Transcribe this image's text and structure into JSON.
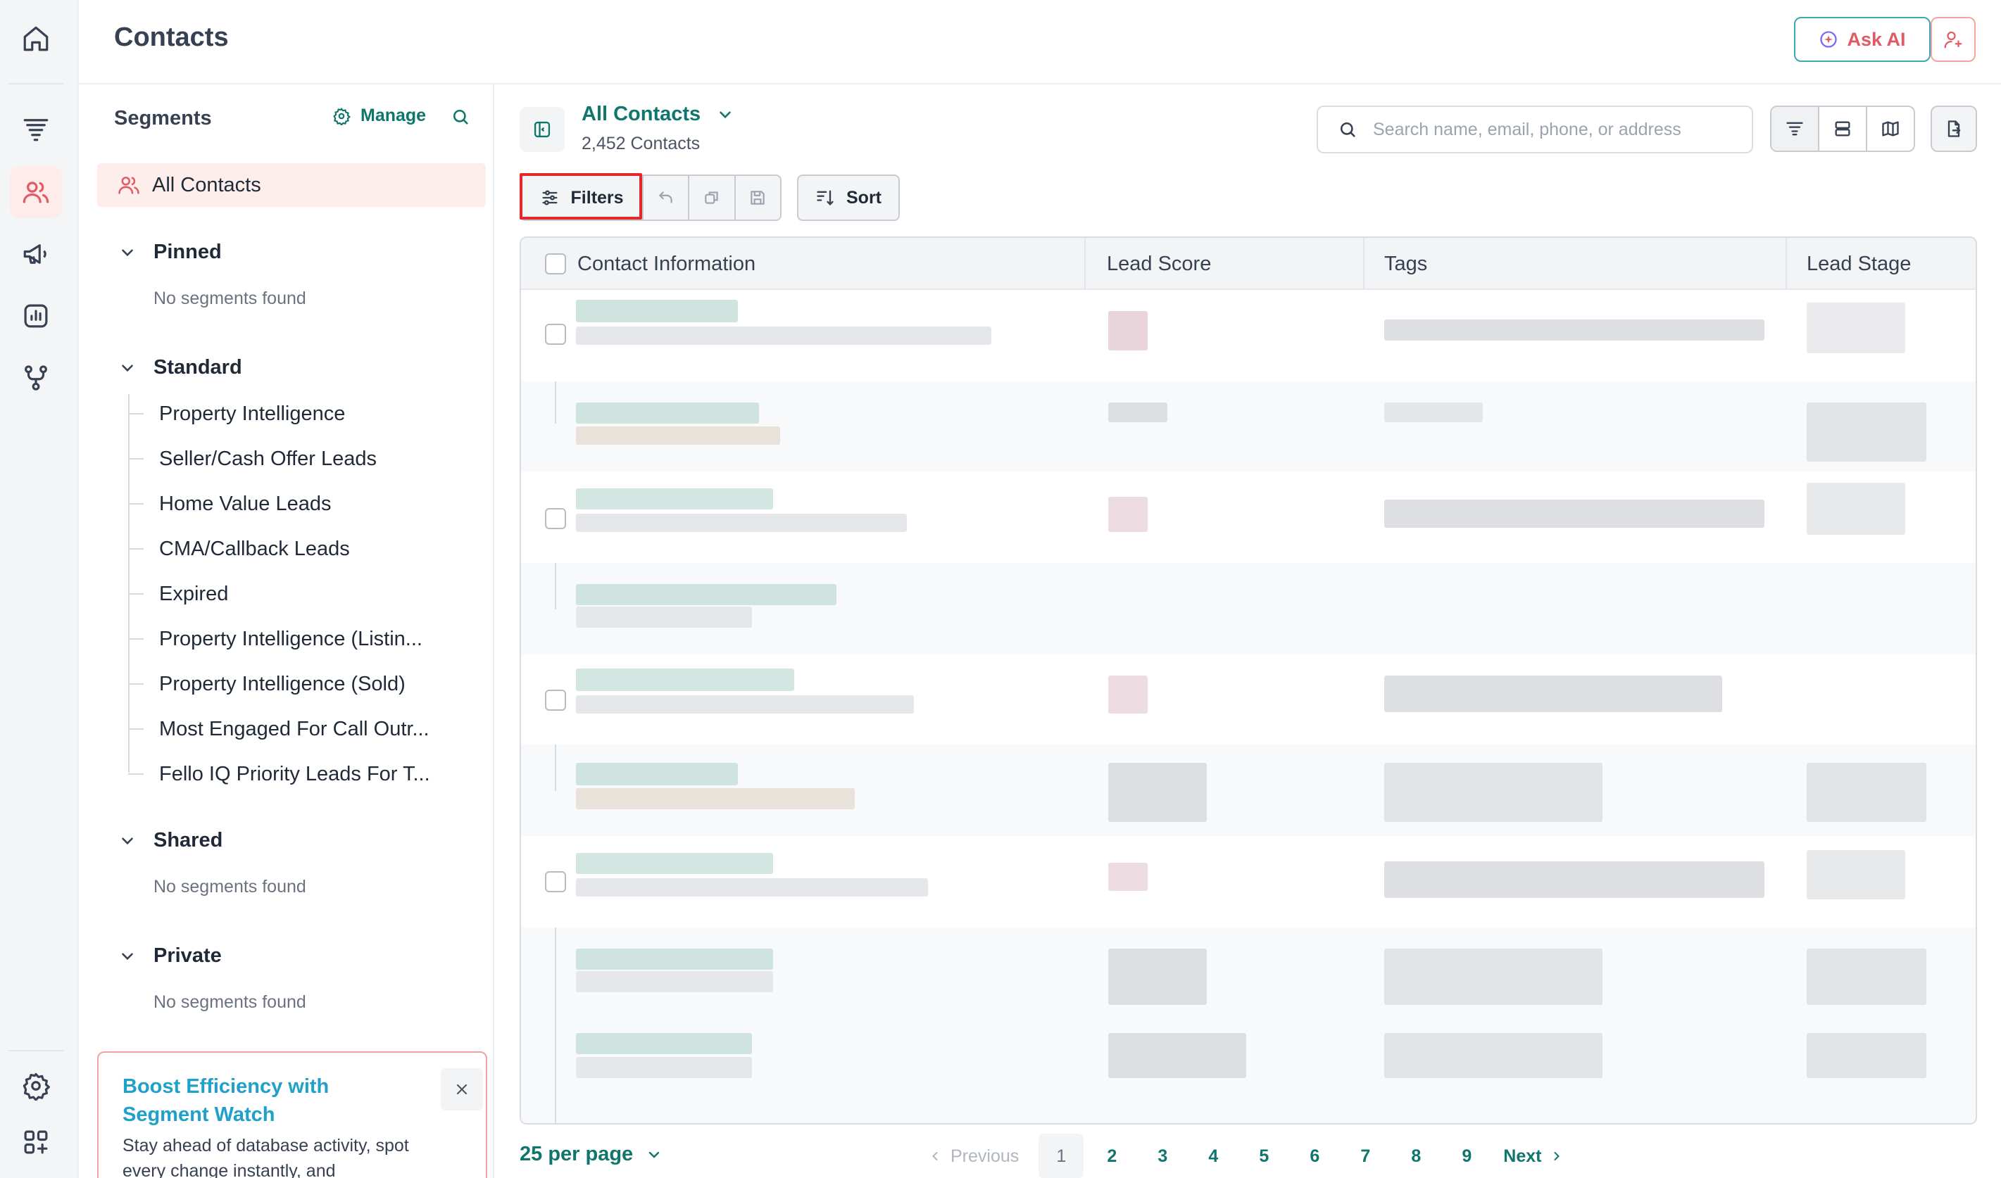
{
  "header": {
    "title": "Contacts",
    "ask_ai_label": "Ask AI"
  },
  "rail": {
    "items": [
      "home-icon",
      "funnel-icon",
      "contacts-icon",
      "megaphone-icon",
      "analytics-icon",
      "workflow-icon",
      "settings-icon",
      "apps-icon"
    ],
    "active": "contacts-icon"
  },
  "segments": {
    "title": "Segments",
    "manage_label": "Manage",
    "all_contacts_label": "All Contacts",
    "groups": {
      "pinned": {
        "label": "Pinned",
        "empty": "No segments found"
      },
      "standard": {
        "label": "Standard",
        "items": [
          "Property Intelligence",
          "Seller/Cash Offer Leads",
          "Home Value Leads",
          "CMA/Callback Leads",
          "Expired",
          "Property Intelligence (Listin...",
          "Property Intelligence (Sold)",
          "Most Engaged For Call Outr...",
          "Fello IQ Priority Leads For T..."
        ]
      },
      "shared": {
        "label": "Shared",
        "empty": "No segments found"
      },
      "private": {
        "label": "Private",
        "empty": "No segments found"
      }
    },
    "promo": {
      "title": "Boost Efficiency with Segment Watch",
      "body": "Stay ahead of database activity, spot every change instantly, and"
    }
  },
  "main": {
    "view_title": "All Contacts",
    "count_text": "2,452 Contacts",
    "search_placeholder": "Search name, email, phone, or address",
    "filters_label": "Filters",
    "sort_label": "Sort",
    "columns": [
      "Contact Information",
      "Lead Score",
      "Tags",
      "Lead Stage"
    ]
  },
  "pagination": {
    "per_page": "25 per page",
    "previous": "Previous",
    "next": "Next",
    "pages": [
      "1",
      "2",
      "3",
      "4",
      "5",
      "6",
      "7",
      "8",
      "9"
    ],
    "current": "1"
  },
  "colors": {
    "accent": "#0f766e",
    "active_rail_bg": "#fdecea",
    "highlight": "#e5262b",
    "promo_title": "#1fa1c9"
  }
}
